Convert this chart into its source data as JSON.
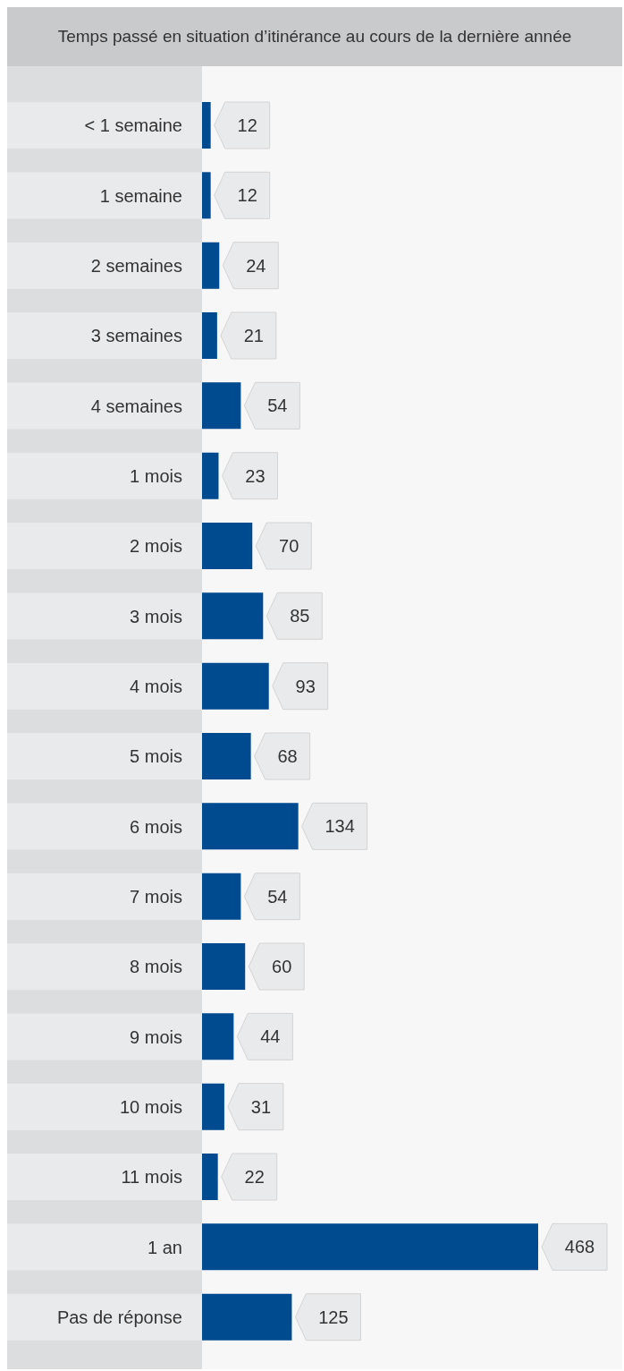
{
  "chart_data": {
    "type": "bar",
    "orientation": "horizontal",
    "title": "Temps passé en situation d’itinérance au cours de la dernière année",
    "categories": [
      "< 1 semaine",
      "1 semaine",
      "2 semaines",
      "3 semaines",
      "4 semaines",
      "1 mois",
      "2 mois",
      "3 mois",
      "4 mois",
      "5 mois",
      "6 mois",
      "7 mois",
      "8 mois",
      "9 mois",
      "10 mois",
      "11 mois",
      "1 an",
      "Pas de réponse"
    ],
    "values": [
      12,
      12,
      24,
      21,
      54,
      23,
      70,
      85,
      93,
      68,
      134,
      54,
      60,
      44,
      31,
      22,
      468,
      125
    ],
    "color": "#004a8f",
    "data_labels": true
  }
}
